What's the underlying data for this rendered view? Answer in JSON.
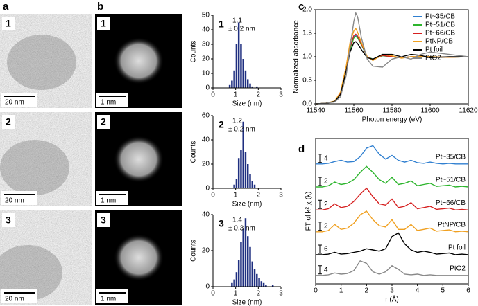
{
  "panel_labels": [
    "a",
    "b",
    "c",
    "d"
  ],
  "images": [
    {
      "label": "1",
      "tem_scale": "20 nm",
      "haadf_scale": "1 nm"
    },
    {
      "label": "2",
      "tem_scale": "20 nm",
      "haadf_scale": "1 nm"
    },
    {
      "label": "3",
      "tem_scale": "20 nm",
      "haadf_scale": "1 nm"
    }
  ],
  "chart_data": [
    {
      "type": "histogram",
      "label": "1",
      "annotations": [
        "1.1",
        "± 0.2 nm"
      ],
      "xlabel": "Size (nm)",
      "ylabel": "Counts",
      "color": "#1f2f80",
      "bins": [
        0.7,
        0.8,
        0.9,
        1.0,
        1.1,
        1.2,
        1.3,
        1.4,
        1.5,
        1.6,
        1.7,
        1.8,
        1.9,
        2.0
      ],
      "values": [
        2,
        5,
        12,
        30,
        45,
        30,
        20,
        12,
        6,
        3,
        1,
        0,
        1
      ],
      "xlim": [
        0,
        3
      ],
      "xticks": [
        0,
        1,
        2,
        3
      ],
      "ylim": [
        0,
        50
      ],
      "yticks": [
        0,
        10,
        20,
        30,
        40,
        50
      ]
    },
    {
      "type": "histogram",
      "label": "2",
      "annotations": [
        "1.2",
        "± 0.2 nm"
      ],
      "xlabel": "Size (nm)",
      "ylabel": "Counts",
      "color": "#1f2f80",
      "bins": [
        0.9,
        1.0,
        1.1,
        1.2,
        1.3,
        1.4,
        1.5,
        1.6,
        1.7,
        1.8,
        1.9
      ],
      "values": [
        3,
        8,
        25,
        32,
        55,
        30,
        20,
        12,
        6,
        3
      ],
      "xlim": [
        0,
        3
      ],
      "xticks": [
        0,
        1,
        2,
        3
      ],
      "ylim": [
        0,
        60
      ],
      "yticks": [
        0,
        20,
        40,
        60
      ]
    },
    {
      "type": "histogram",
      "label": "3",
      "annotations": [
        "1.4",
        "± 0.3 nm"
      ],
      "xlabel": "Size (nm)",
      "ylabel": "Counts",
      "color": "#1f2f80",
      "bins": [
        0.8,
        0.9,
        1.0,
        1.1,
        1.2,
        1.3,
        1.4,
        1.5,
        1.6,
        1.7,
        1.8,
        1.9,
        2.0,
        2.1,
        2.2,
        2.3,
        2.4,
        2.5,
        2.6,
        2.7
      ],
      "values": [
        2,
        4,
        8,
        15,
        25,
        32,
        38,
        28,
        22,
        14,
        10,
        7,
        5,
        3,
        2,
        1,
        0,
        0,
        1
      ],
      "xlim": [
        0,
        3
      ],
      "xticks": [
        0,
        1,
        2,
        3
      ],
      "ylim": [
        0,
        40
      ],
      "yticks": [
        0,
        20,
        40
      ]
    },
    {
      "type": "line",
      "xlabel": "Photon energy (eV)",
      "ylabel": "Normalized absorbance",
      "legend": "upper right",
      "x": [
        11540,
        11545,
        11550,
        11553,
        11556,
        11558,
        11560,
        11561,
        11562,
        11564,
        11567,
        11570,
        11575,
        11580,
        11585,
        11590,
        11595,
        11600,
        11610,
        11620
      ],
      "xlim": [
        11540,
        11620
      ],
      "xticks": [
        11540,
        11560,
        11580,
        11600,
        11620
      ],
      "ylim": [
        0,
        2.0
      ],
      "yticks": [
        {
          "value": 0,
          "label": "0.0"
        },
        {
          "value": 0.5,
          "label": "0.5"
        },
        {
          "value": 1,
          "label": "1.0"
        },
        {
          "value": 1.5,
          "label": "1.5"
        },
        {
          "value": 2,
          "label": "2.0"
        }
      ],
      "series": [
        {
          "name": "Pt~35/CB",
          "color": "#2f7fd0",
          "values": [
            0,
            0.01,
            0.05,
            0.2,
            0.7,
            1.15,
            1.42,
            1.45,
            1.42,
            1.25,
            1.0,
            0.95,
            1.02,
            1.0,
            0.98,
            1.0,
            1.01,
            1.0,
            0.99,
            1.0
          ]
        },
        {
          "name": "Pt~51/CB",
          "color": "#2db52d",
          "values": [
            0,
            0.01,
            0.05,
            0.2,
            0.7,
            1.15,
            1.4,
            1.43,
            1.4,
            1.25,
            1.0,
            0.95,
            1.02,
            1.0,
            0.98,
            1.0,
            1.01,
            1.0,
            0.99,
            1.0
          ]
        },
        {
          "name": "Pt~66/CB",
          "color": "#d62020",
          "values": [
            0,
            0.01,
            0.05,
            0.22,
            0.75,
            1.2,
            1.45,
            1.48,
            1.44,
            1.27,
            1.0,
            0.94,
            1.03,
            1.0,
            0.98,
            1.0,
            1.01,
            1.0,
            0.99,
            1.0
          ]
        },
        {
          "name": "PtNP/CB",
          "color": "#f0a020",
          "values": [
            0,
            0.01,
            0.06,
            0.25,
            0.8,
            1.3,
            1.55,
            1.6,
            1.52,
            1.3,
            1.0,
            0.92,
            1.05,
            1.02,
            0.97,
            1.0,
            1.01,
            1.0,
            0.99,
            1.0
          ]
        },
        {
          "name": "Pt foil",
          "color": "#000000",
          "values": [
            0,
            0.01,
            0.05,
            0.2,
            0.7,
            1.1,
            1.3,
            1.32,
            1.28,
            1.15,
            0.98,
            0.95,
            1.05,
            1.05,
            1.0,
            1.05,
            1.03,
            0.98,
            1.0,
            1.0
          ]
        },
        {
          "name": "PtO2",
          "color": "#888888",
          "values": [
            0,
            0.01,
            0.04,
            0.15,
            0.6,
            1.2,
            1.75,
            1.93,
            1.85,
            1.4,
            0.95,
            0.8,
            0.78,
            0.95,
            1.0,
            0.95,
            1.05,
            1.1,
            1.05,
            1.0
          ]
        }
      ]
    },
    {
      "type": "line",
      "xlabel": "r (Å)",
      "ylabel": "FT of k² χ (k)",
      "legend": "inline",
      "x": [
        0,
        0.25,
        0.5,
        0.75,
        1,
        1.25,
        1.5,
        1.75,
        2,
        2.25,
        2.5,
        2.75,
        3,
        3.25,
        3.5,
        3.75,
        4,
        4.25,
        4.5,
        4.75,
        5,
        5.25,
        5.5,
        5.75,
        6
      ],
      "xlim": [
        0,
        6
      ],
      "xticks": [
        0,
        1,
        2,
        3,
        4,
        5,
        6
      ],
      "ylim": [
        0,
        12
      ],
      "series": [
        {
          "name": "Pt~35/CB",
          "scale": "4",
          "color": "#2f7fd0",
          "values": [
            9.9,
            9.9,
            9.95,
            10.1,
            10.2,
            10.05,
            10.1,
            10.5,
            11.2,
            11.4,
            10.7,
            10.3,
            10.6,
            10.2,
            10.05,
            10.2,
            10.0,
            9.95,
            10.05,
            9.95,
            9.9,
            9.95,
            9.9,
            9.9,
            9.9
          ]
        },
        {
          "name": "Pt~51/CB",
          "scale": "2",
          "color": "#2db52d",
          "values": [
            8.0,
            8.0,
            8.1,
            8.4,
            8.2,
            8.3,
            8.6,
            9.2,
            9.7,
            9.2,
            8.6,
            8.3,
            8.8,
            8.2,
            8.3,
            8.5,
            8.1,
            8.2,
            8.3,
            8.05,
            8.1,
            8.15,
            8.0,
            8.05,
            8.0
          ]
        },
        {
          "name": "Pt~66/CB",
          "scale": "2",
          "color": "#d62020",
          "values": [
            6.1,
            6.1,
            6.2,
            6.6,
            6.3,
            6.4,
            6.8,
            7.4,
            7.9,
            7.2,
            6.6,
            6.5,
            7.0,
            6.3,
            6.4,
            6.7,
            6.2,
            6.3,
            6.4,
            6.15,
            6.2,
            6.25,
            6.1,
            6.15,
            6.1
          ]
        },
        {
          "name": "PtNP/CB",
          "scale": "2",
          "color": "#f0a020",
          "values": [
            4.3,
            4.3,
            4.4,
            4.9,
            4.5,
            4.6,
            5.0,
            5.7,
            6.0,
            5.3,
            4.8,
            4.7,
            5.3,
            4.5,
            4.5,
            4.9,
            4.4,
            4.5,
            4.6,
            4.35,
            4.4,
            4.45,
            4.3,
            4.35,
            4.3
          ]
        },
        {
          "name": "Pt foil",
          "scale": "6",
          "color": "#000000",
          "values": [
            2.4,
            2.4,
            2.45,
            2.6,
            2.45,
            2.5,
            2.6,
            2.7,
            2.9,
            2.8,
            2.7,
            2.9,
            3.9,
            4.2,
            3.3,
            2.8,
            2.6,
            2.7,
            2.6,
            2.45,
            2.5,
            2.55,
            2.4,
            2.45,
            2.4
          ]
        },
        {
          "name": "PtO2",
          "scale": "4",
          "color": "#888888",
          "values": [
            0.7,
            0.7,
            0.75,
            0.9,
            0.8,
            0.85,
            1.1,
            1.9,
            1.7,
            1.0,
            0.8,
            1.0,
            1.5,
            1.2,
            0.8,
            0.75,
            0.8,
            0.7,
            0.75,
            0.7,
            0.7,
            0.7,
            0.7,
            0.7,
            0.7
          ]
        }
      ]
    }
  ]
}
